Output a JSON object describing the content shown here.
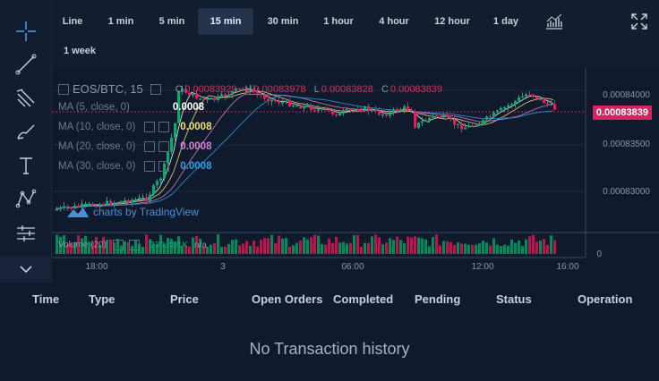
{
  "toolbar": {
    "tools": [
      "crosshair-icon",
      "trend-line-icon",
      "pitchfork-icon",
      "brush-icon",
      "text-icon",
      "pattern-icon",
      "measure-icon",
      "collapse-icon"
    ]
  },
  "intervals": {
    "items": [
      "Line",
      "1 min",
      "5 min",
      "15 min",
      "30 min",
      "1 hour",
      "4 hour",
      "12 hour",
      "1 day",
      "1 week"
    ],
    "active": "15 min"
  },
  "chart": {
    "symbol": "EOS/BTC, 15",
    "ohlc": {
      "o_label": "O",
      "o": "0.00083929",
      "h_label": "H",
      "h": "0.00083978",
      "l_label": "L",
      "l": "0.00083828",
      "c_label": "C",
      "c": "0.00083839"
    },
    "indicators": [
      {
        "label": "MA (5, close, 0)",
        "value": "0.0008",
        "color": "#ffffff"
      },
      {
        "label": "MA (10, close, 0)",
        "value": "0.0008",
        "color": "#f5e07a"
      },
      {
        "label": "MA (20, close, 0)",
        "value": "0.0008",
        "color": "#d783d3"
      },
      {
        "label": "MA (30, close, 0)",
        "value": "0.0008",
        "color": "#2f9fe0"
      }
    ],
    "price_ticks": [
      "0.00084000",
      "0.00083500",
      "0.00083000",
      "0"
    ],
    "last_price": "0.00083839",
    "time_ticks": [
      "18:00",
      "3",
      "06:00",
      "12:00",
      "16:00"
    ],
    "volume_label": "Volume (20)",
    "volume_value": "239.401K",
    "volume_na": "n/a",
    "watermark": "charts by TradingView",
    "colors": {
      "up": "#16a36f",
      "down": "#d6245e"
    }
  },
  "history": {
    "headers": [
      "Time",
      "Type",
      "Price",
      "Open Orders",
      "Completed",
      "Pending",
      "Status",
      "Operation"
    ],
    "empty_text": "No Transaction history"
  }
}
